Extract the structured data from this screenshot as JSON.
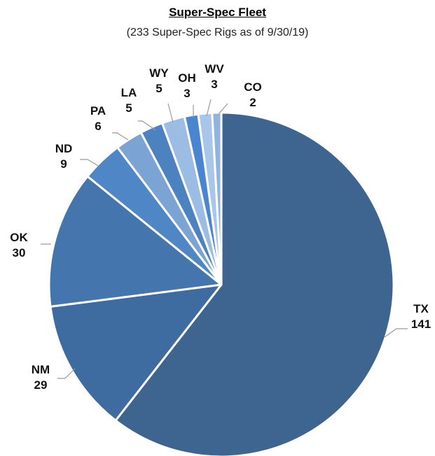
{
  "chart_data": {
    "type": "pie",
    "title": "Super-Spec Fleet",
    "subtitle": "(233 Super-Spec Rigs as of 9/30/19)",
    "slices": [
      {
        "label": "TX",
        "value": 141,
        "color": "#3d6590"
      },
      {
        "label": "NM",
        "value": 29,
        "color": "#3e6ca1"
      },
      {
        "label": "OK",
        "value": 30,
        "color": "#4475ad"
      },
      {
        "label": "ND",
        "value": 9,
        "color": "#4f86c6"
      },
      {
        "label": "PA",
        "value": 6,
        "color": "#7ba3d4"
      },
      {
        "label": "LA",
        "value": 5,
        "color": "#4c82bf"
      },
      {
        "label": "WY",
        "value": 5,
        "color": "#9cbde3"
      },
      {
        "label": "OH",
        "value": 3,
        "color": "#4a86d0"
      },
      {
        "label": "WV",
        "value": 3,
        "color": "#a8c6ea"
      },
      {
        "label": "CO",
        "value": 2,
        "color": "#8fb4e0"
      }
    ]
  }
}
